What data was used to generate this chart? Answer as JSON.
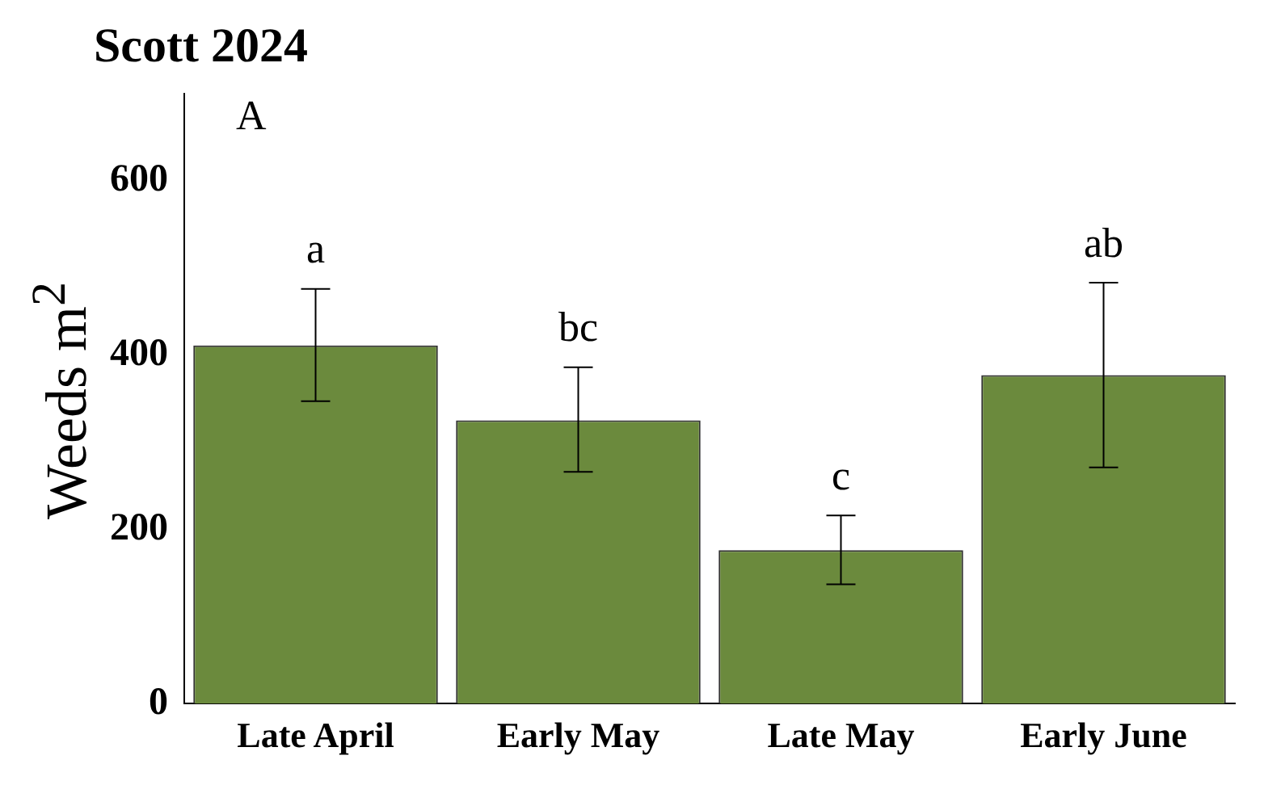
{
  "chart_data": {
    "type": "bar",
    "title": "Scott 2024",
    "ylabel": "Weeds m$^{2}$",
    "categories": [
      "Late April",
      "Early May",
      "Late May",
      "Early June"
    ],
    "values": [
      411,
      325,
      176,
      377
    ],
    "errors": [
      [
        347,
        476
      ],
      [
        266,
        386
      ],
      [
        137,
        216
      ],
      [
        271,
        483
      ]
    ],
    "color": "#6b8a3d",
    "ylim": [
      0,
      700
    ],
    "yticks": [
      0,
      200,
      400,
      600
    ],
    "grid": false,
    "legend": false,
    "annotations": [
      "A",
      {
        "text": "a",
        "x": "Late April",
        "y": 476
      },
      {
        "text": "bc",
        "x": "Early May",
        "y": 386
      },
      {
        "text": "c",
        "x": "Late May",
        "y": 216
      },
      {
        "text": "ab",
        "x": "Early June",
        "y": 483
      }
    ]
  }
}
